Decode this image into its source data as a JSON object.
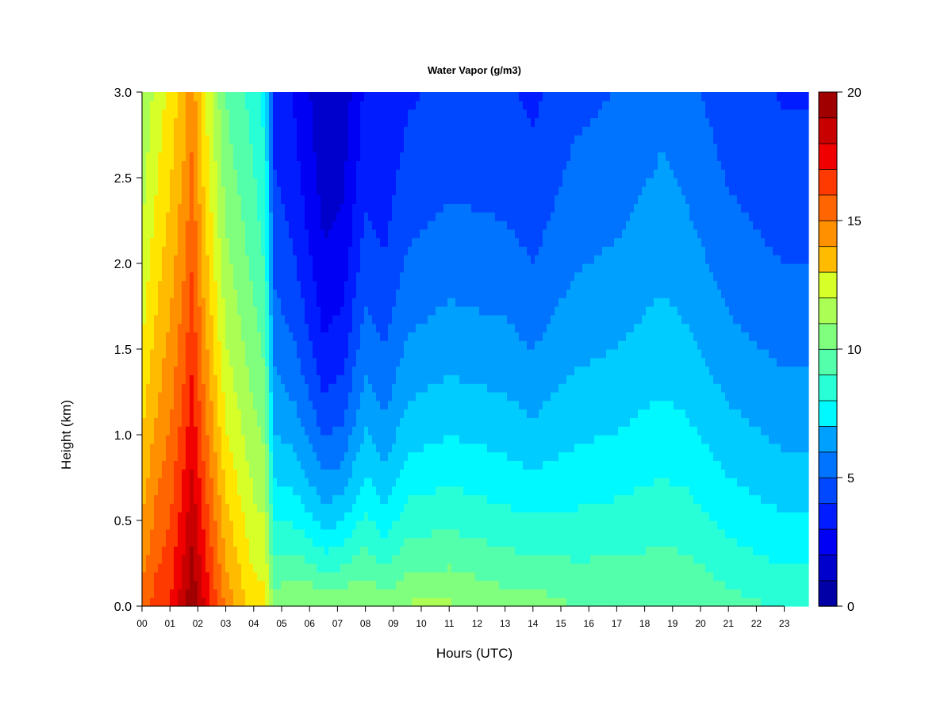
{
  "chart_data": {
    "type": "heatmap",
    "title": "Water Vapor (g/m3)",
    "xlabel": "Hours (UTC)",
    "ylabel": "Height (km)",
    "x_ticks": [
      "00",
      "01",
      "02",
      "03",
      "04",
      "05",
      "06",
      "07",
      "08",
      "09",
      "10",
      "11",
      "12",
      "13",
      "14",
      "15",
      "16",
      "17",
      "18",
      "19",
      "20",
      "21",
      "22",
      "23"
    ],
    "x_range": [
      0,
      23.85
    ],
    "y_ticks": [
      "0.0",
      "0.5",
      "1.0",
      "1.5",
      "2.0",
      "2.5",
      "3.0"
    ],
    "y_range": [
      0,
      3.0
    ],
    "colorbar": {
      "ticks": [
        "0",
        "5",
        "10",
        "15",
        "20"
      ],
      "range": [
        0,
        20
      ],
      "levels": 20,
      "colors": [
        "#00007f",
        "#0000a6",
        "#0000cd",
        "#0000f4",
        "#001cff",
        "#0048ff",
        "#0074ff",
        "#00a0ff",
        "#00ccff",
        "#00f8ff",
        "#28ffd7",
        "#54ffab",
        "#80ff7f",
        "#abff54",
        "#d7ff28",
        "#ffe500",
        "#ffbb00",
        "#ff9000",
        "#ff6500",
        "#ff3a00",
        "#f10000",
        "#c90000",
        "#a10000",
        "#7f0000"
      ]
    },
    "profiles": [
      {
        "hour": 0.0,
        "surface": 15.5,
        "scale": 3.2,
        "floor": 8.0
      },
      {
        "hour": 0.5,
        "surface": 16.5,
        "scale": 3.6,
        "floor": 8.5
      },
      {
        "hour": 1.0,
        "surface": 17.0,
        "scale": 4.2,
        "floor": 9.0
      },
      {
        "hour": 1.5,
        "surface": 18.5,
        "scale": 4.2,
        "floor": 9.5
      },
      {
        "hour": 1.8,
        "surface": 19.5,
        "scale": 4.5,
        "floor": 10.0
      },
      {
        "hour": 2.2,
        "surface": 18.0,
        "scale": 3.5,
        "floor": 9.0
      },
      {
        "hour": 3.0,
        "surface": 15.0,
        "scale": 3.0,
        "floor": 7.0
      },
      {
        "hour": 4.0,
        "surface": 13.0,
        "scale": 3.2,
        "floor": 6.0
      },
      {
        "hour": 4.4,
        "surface": 13.0,
        "scale": 3.0,
        "floor": 5.0
      },
      {
        "hour": 4.7,
        "surface": 10.5,
        "scale": 1.5,
        "floor": 2.5
      },
      {
        "hour": 5.5,
        "surface": 11.0,
        "scale": 1.3,
        "floor": 2.0
      },
      {
        "hour": 6.5,
        "surface": 11.0,
        "scale": 1.0,
        "floor": 1.0
      },
      {
        "hour": 7.2,
        "surface": 11.0,
        "scale": 1.1,
        "floor": 1.0
      },
      {
        "hour": 8.0,
        "surface": 11.0,
        "scale": 1.5,
        "floor": 2.0
      },
      {
        "hour": 8.7,
        "surface": 10.5,
        "scale": 1.2,
        "floor": 2.5
      },
      {
        "hour": 9.5,
        "surface": 11.0,
        "scale": 1.6,
        "floor": 2.5
      },
      {
        "hour": 11.0,
        "surface": 11.0,
        "scale": 1.8,
        "floor": 2.5
      },
      {
        "hour": 13.0,
        "surface": 10.5,
        "scale": 1.8,
        "floor": 2.5
      },
      {
        "hour": 14.0,
        "surface": 10.5,
        "scale": 1.6,
        "floor": 2.5
      },
      {
        "hour": 15.5,
        "surface": 10.0,
        "scale": 2.0,
        "floor": 3.0
      },
      {
        "hour": 17.0,
        "surface": 10.0,
        "scale": 2.2,
        "floor": 3.0
      },
      {
        "hour": 18.6,
        "surface": 10.0,
        "scale": 2.4,
        "floor": 3.5
      },
      {
        "hour": 19.5,
        "surface": 10.0,
        "scale": 2.3,
        "floor": 3.2
      },
      {
        "hour": 21.0,
        "surface": 9.5,
        "scale": 2.0,
        "floor": 2.8
      },
      {
        "hour": 23.0,
        "surface": 9.0,
        "scale": 1.9,
        "floor": 2.5
      },
      {
        "hour": 23.85,
        "surface": 9.0,
        "scale": 1.9,
        "floor": 2.5
      }
    ]
  }
}
